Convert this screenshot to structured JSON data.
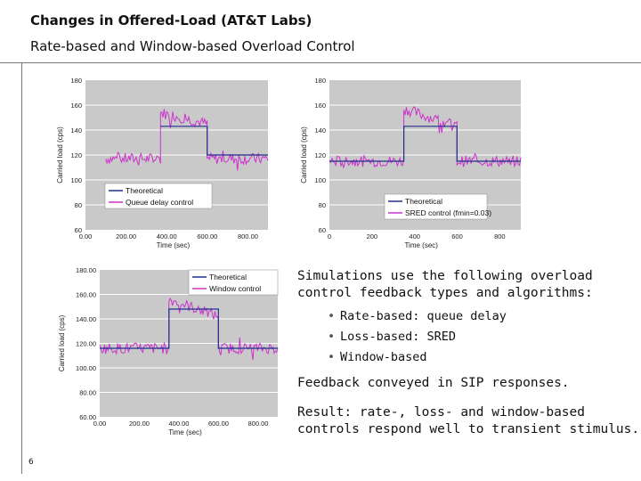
{
  "slide": {
    "title": "Changes in Offered-Load (AT&T Labs)",
    "subtitle": "Rate-based and Window-based Overload Control",
    "page_number": "6"
  },
  "body": {
    "intro": "Simulations use the following overload control feedback types and algorithms:",
    "intro_line1": "Simulations use the following overload",
    "intro_line2": "control feedback types and algorithms:",
    "bullets": [
      "Rate-based: queue delay",
      "Loss-based: SRED",
      "Window-based"
    ],
    "feedback": "Feedback conveyed in SIP responses.",
    "result_line1": "Result: rate-, loss- and window-based",
    "result_line2": "controls respond well to transient stimulus."
  },
  "chart_data": [
    {
      "type": "line",
      "xlabel": "Time (sec)",
      "ylabel": "Carried load (cps)",
      "ylim": [
        60,
        180
      ],
      "yticks": [
        "180",
        "160",
        "140",
        "120",
        "100",
        "80",
        "60"
      ],
      "xticks": [
        "0.00",
        "200.00",
        "400.00",
        "600.00",
        "800.00"
      ],
      "xlim": [
        0,
        900
      ],
      "legend": [
        "Theoretical",
        "Queue delay control"
      ],
      "legend_position": "bottom-left",
      "series": [
        {
          "name": "Theoretical",
          "color": "#1f2f8f",
          "x": [
            370,
            600,
            600,
            900
          ],
          "y": [
            143,
            143,
            120,
            120
          ]
        },
        {
          "name": "Queue delay control",
          "color": "#cc33cc",
          "x": [
            100,
            370,
            370,
            600,
            600,
            900
          ],
          "y": [
            117,
            117,
            154,
            145,
            117,
            117
          ]
        }
      ]
    },
    {
      "type": "line",
      "xlabel": "Time (sec)",
      "ylabel": "Carried load (cps)",
      "ylim": [
        60,
        180
      ],
      "yticks": [
        "180",
        "160",
        "140",
        "120",
        "100",
        "80",
        "60"
      ],
      "xticks": [
        "0",
        "200",
        "400",
        "600",
        "800"
      ],
      "xlim": [
        0,
        900
      ],
      "legend": [
        "Theoretical",
        "SRED control (fmin=0.03)"
      ],
      "legend_position": "bottom-right",
      "series": [
        {
          "name": "Theoretical",
          "color": "#1f2f8f",
          "x": [
            0,
            350,
            350,
            600,
            600,
            900
          ],
          "y": [
            115,
            115,
            143,
            143,
            115,
            115
          ]
        },
        {
          "name": "SRED control (fmin=0.03)",
          "color": "#cc33cc",
          "x": [
            0,
            350,
            350,
            600,
            600,
            900
          ],
          "y": [
            115,
            115,
            157,
            143,
            115,
            115
          ]
        }
      ]
    },
    {
      "type": "line",
      "xlabel": "Time (sec)",
      "ylabel": "Carried load (cps)",
      "ylim": [
        60,
        180
      ],
      "yticks": [
        "180.00",
        "160.00",
        "140.00",
        "120.00",
        "100.00",
        "80.00",
        "60.00"
      ],
      "xticks": [
        "0.00",
        "200.00",
        "400.00",
        "600.00",
        "800.00"
      ],
      "xlim": [
        0,
        900
      ],
      "legend": [
        "Theoretical",
        "Window control"
      ],
      "legend_position": "top-right",
      "series": [
        {
          "name": "Theoretical",
          "color": "#1f2f8f",
          "x": [
            0,
            350,
            350,
            600,
            600,
            900
          ],
          "y": [
            116,
            116,
            148,
            148,
            116,
            116
          ]
        },
        {
          "name": "Window control",
          "color": "#cc33cc",
          "x": [
            0,
            350,
            350,
            600,
            600,
            900
          ],
          "y": [
            116,
            116,
            156,
            142,
            116,
            116
          ]
        }
      ]
    }
  ]
}
